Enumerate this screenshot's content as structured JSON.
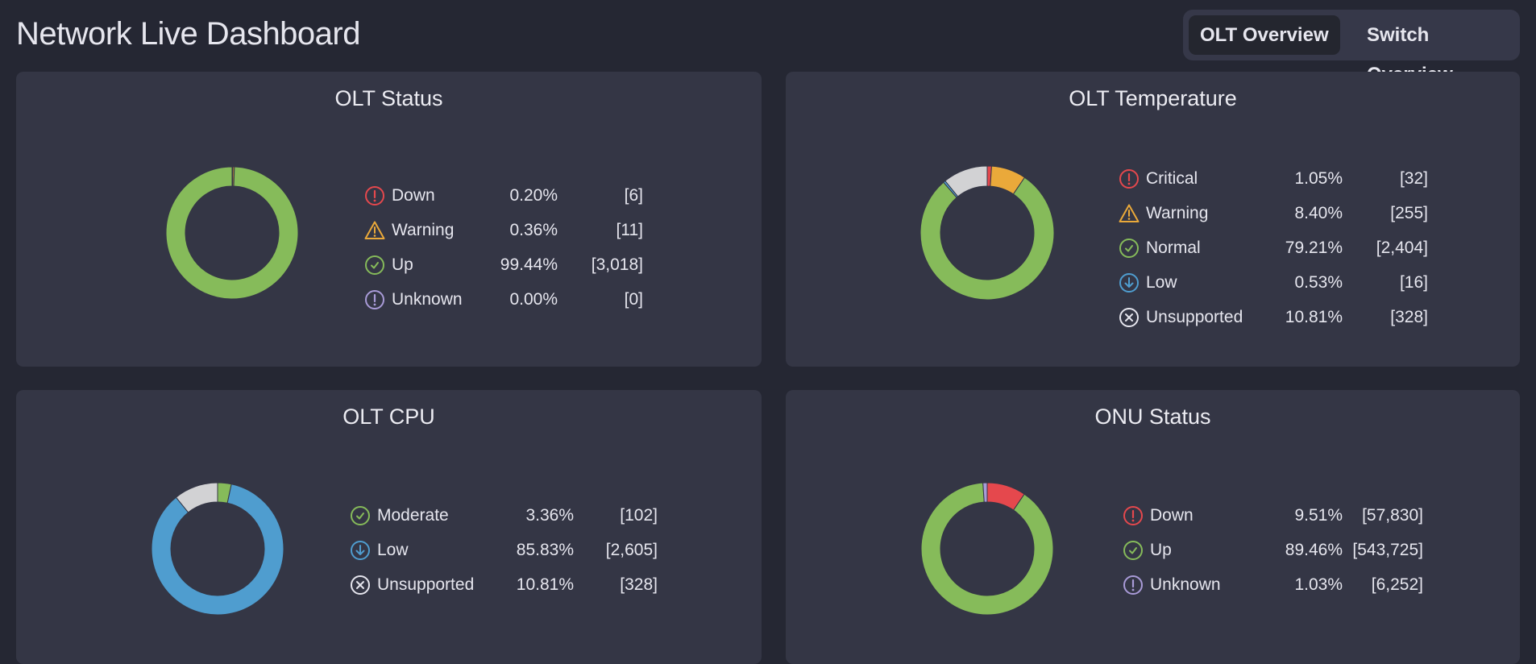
{
  "header": {
    "title": "Network Live Dashboard"
  },
  "tabs": [
    {
      "label": "OLT Overview",
      "active": true
    },
    {
      "label": "Switch Overview",
      "active": false
    }
  ],
  "colors": {
    "red": "#e5484d",
    "orange": "#eaa93a",
    "green": "#86bb5a",
    "blue": "#4f9dcf",
    "gray": "#d2d2d4",
    "purple": "#a99bd8",
    "white": "#e6e6ee"
  },
  "chart_data": [
    {
      "type": "pie",
      "donut": true,
      "title": "OLT Status",
      "items": [
        {
          "name": "Down",
          "pct": "0.20%",
          "count": "[6]",
          "value": 0.2,
          "color": "red",
          "icon": "alert-circle-icon"
        },
        {
          "name": "Warning",
          "pct": "0.36%",
          "count": "[11]",
          "value": 0.36,
          "color": "orange",
          "icon": "warning-triangle-icon"
        },
        {
          "name": "Up",
          "pct": "99.44%",
          "count": "[3,018]",
          "value": 99.44,
          "color": "green",
          "icon": "check-circle-icon"
        },
        {
          "name": "Unknown",
          "pct": "0.00%",
          "count": "[0]",
          "value": 0.0,
          "color": "purple",
          "icon": "alert-circle-icon"
        }
      ]
    },
    {
      "type": "pie",
      "donut": true,
      "title": "OLT Temperature",
      "items": [
        {
          "name": "Critical",
          "pct": "1.05%",
          "count": "[32]",
          "value": 1.05,
          "color": "red",
          "icon": "alert-circle-icon"
        },
        {
          "name": "Warning",
          "pct": "8.40%",
          "count": "[255]",
          "value": 8.4,
          "color": "orange",
          "icon": "warning-triangle-icon"
        },
        {
          "name": "Normal",
          "pct": "79.21%",
          "count": "[2,404]",
          "value": 79.21,
          "color": "green",
          "icon": "check-circle-icon"
        },
        {
          "name": "Low",
          "pct": "0.53%",
          "count": "[16]",
          "value": 0.53,
          "color": "blue",
          "icon": "arrow-down-circle-icon"
        },
        {
          "name": "Unsupported",
          "pct": "10.81%",
          "count": "[328]",
          "value": 10.81,
          "color": "gray",
          "icon": "x-circle-icon"
        }
      ]
    },
    {
      "type": "pie",
      "donut": true,
      "title": "OLT CPU",
      "items": [
        {
          "name": "Moderate",
          "pct": "3.36%",
          "count": "[102]",
          "value": 3.36,
          "color": "green",
          "icon": "check-circle-icon"
        },
        {
          "name": "Low",
          "pct": "85.83%",
          "count": "[2,605]",
          "value": 85.83,
          "color": "blue",
          "icon": "arrow-down-circle-icon"
        },
        {
          "name": "Unsupported",
          "pct": "10.81%",
          "count": "[328]",
          "value": 10.81,
          "color": "gray",
          "icon": "x-circle-icon"
        }
      ]
    },
    {
      "type": "pie",
      "donut": true,
      "title": "ONU Status",
      "items": [
        {
          "name": "Down",
          "pct": "9.51%",
          "count": "[57,830]",
          "value": 9.51,
          "color": "red",
          "icon": "alert-circle-icon"
        },
        {
          "name": "Up",
          "pct": "89.46%",
          "count": "[543,725]",
          "value": 89.46,
          "color": "green",
          "icon": "check-circle-icon"
        },
        {
          "name": "Unknown",
          "pct": "1.03%",
          "count": "[6,252]",
          "value": 1.03,
          "color": "purple",
          "icon": "alert-circle-icon"
        }
      ]
    }
  ]
}
